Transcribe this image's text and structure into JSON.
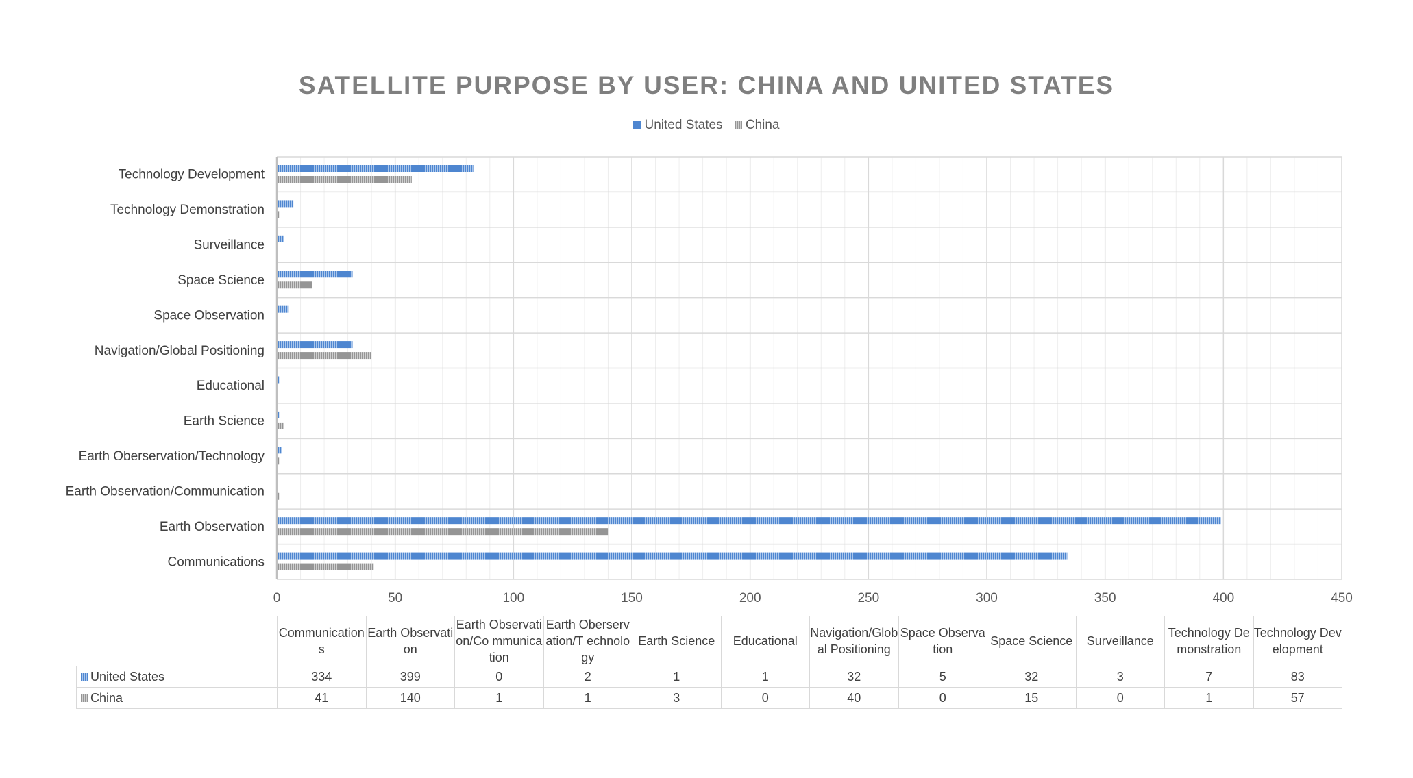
{
  "chart_data": {
    "type": "bar",
    "orientation": "horizontal",
    "title": "SATELLITE PURPOSE BY USER: CHINA AND UNITED STATES",
    "categories": [
      "Communications",
      "Earth Observation",
      "Earth Observation/Communication",
      "Earth Oberservation/Technology",
      "Earth Science",
      "Educational",
      "Navigation/Global Positioning",
      "Space Observation",
      "Space Science",
      "Surveillance",
      "Technology Demonstration",
      "Technology Development"
    ],
    "table_headers": [
      "Communications",
      "Earth Observation",
      "Earth Observation/Co mmunication",
      "Earth Oberservation/T echnology",
      "Earth Science",
      "Educational",
      "Navigation/Glob al Positioning",
      "Space Observation",
      "Space Science",
      "Surveillance",
      "Technology Demonstration",
      "Technology Development"
    ],
    "series": [
      {
        "name": "United States",
        "color": "#5b8fd5",
        "values": [
          334,
          399,
          0,
          2,
          1,
          1,
          32,
          5,
          32,
          3,
          7,
          83
        ]
      },
      {
        "name": "China",
        "color": "#a5a5a5",
        "values": [
          41,
          140,
          1,
          1,
          3,
          0,
          40,
          0,
          15,
          0,
          1,
          57
        ]
      }
    ],
    "xlim": [
      0,
      450
    ],
    "xticks": [
      0,
      50,
      100,
      150,
      200,
      250,
      300,
      350,
      400,
      450
    ],
    "grid": true,
    "legend_position": "top",
    "data_table": true
  }
}
